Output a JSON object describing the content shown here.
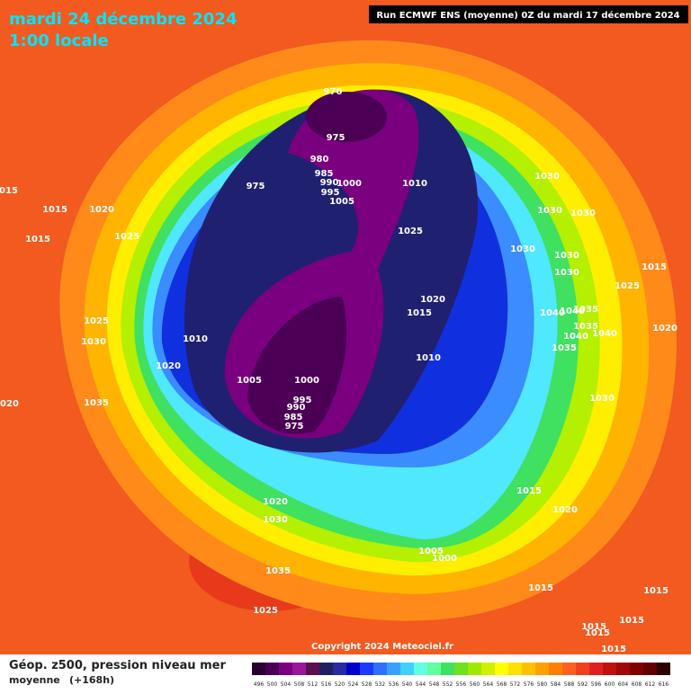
{
  "header": {
    "date": "mardi 24 décembre 2024",
    "time": "1:00 locale",
    "run": "Run ECMWF ENS (moyenne) 0Z du mardi 17 décembre 2024"
  },
  "copyright": "Copyright 2024 Meteociel.fr",
  "legend": {
    "title": "Géop. z500, pression niveau mer",
    "subtitle": "moyenne",
    "lead": "(+168h)",
    "levels": [
      496,
      500,
      504,
      508,
      512,
      516,
      520,
      524,
      528,
      532,
      536,
      540,
      544,
      548,
      552,
      556,
      560,
      564,
      568,
      572,
      576,
      580,
      584,
      588,
      592,
      596,
      600,
      604,
      608,
      612,
      616
    ],
    "colors": [
      "#2a0030",
      "#4b0055",
      "#7a0080",
      "#9b169b",
      "#5a1050",
      "#202060",
      "#2a2aa0",
      "#0000c8",
      "#1a3aff",
      "#2f6fff",
      "#3aa0ff",
      "#40d0ff",
      "#5fffe0",
      "#60ffa0",
      "#40e060",
      "#70e020",
      "#a0e800",
      "#d0f000",
      "#ffff00",
      "#ffe000",
      "#ffc000",
      "#ffa000",
      "#ff8000",
      "#ff6020",
      "#f04020",
      "#e02020",
      "#c01010",
      "#a00808",
      "#800000",
      "#600000",
      "#300000"
    ]
  },
  "isobar_labels": [
    970,
    975,
    980,
    985,
    990,
    995,
    1000,
    1005,
    975,
    1010,
    1025,
    1030,
    1030,
    1030,
    1030,
    1030,
    1030,
    1015,
    1025,
    1040,
    1040,
    1035,
    1035,
    1040,
    1040,
    1035,
    1020,
    1030,
    1020,
    1015,
    1010,
    1010,
    1020,
    1005,
    1000,
    995,
    990,
    985,
    975,
    1035,
    1025,
    1030,
    1015,
    1020,
    1025,
    1015,
    1015,
    1020,
    1020,
    1030,
    1035,
    1025,
    1015,
    1020,
    1005,
    1000,
    1015,
    1015,
    1015,
    1015,
    1015,
    1015
  ]
}
